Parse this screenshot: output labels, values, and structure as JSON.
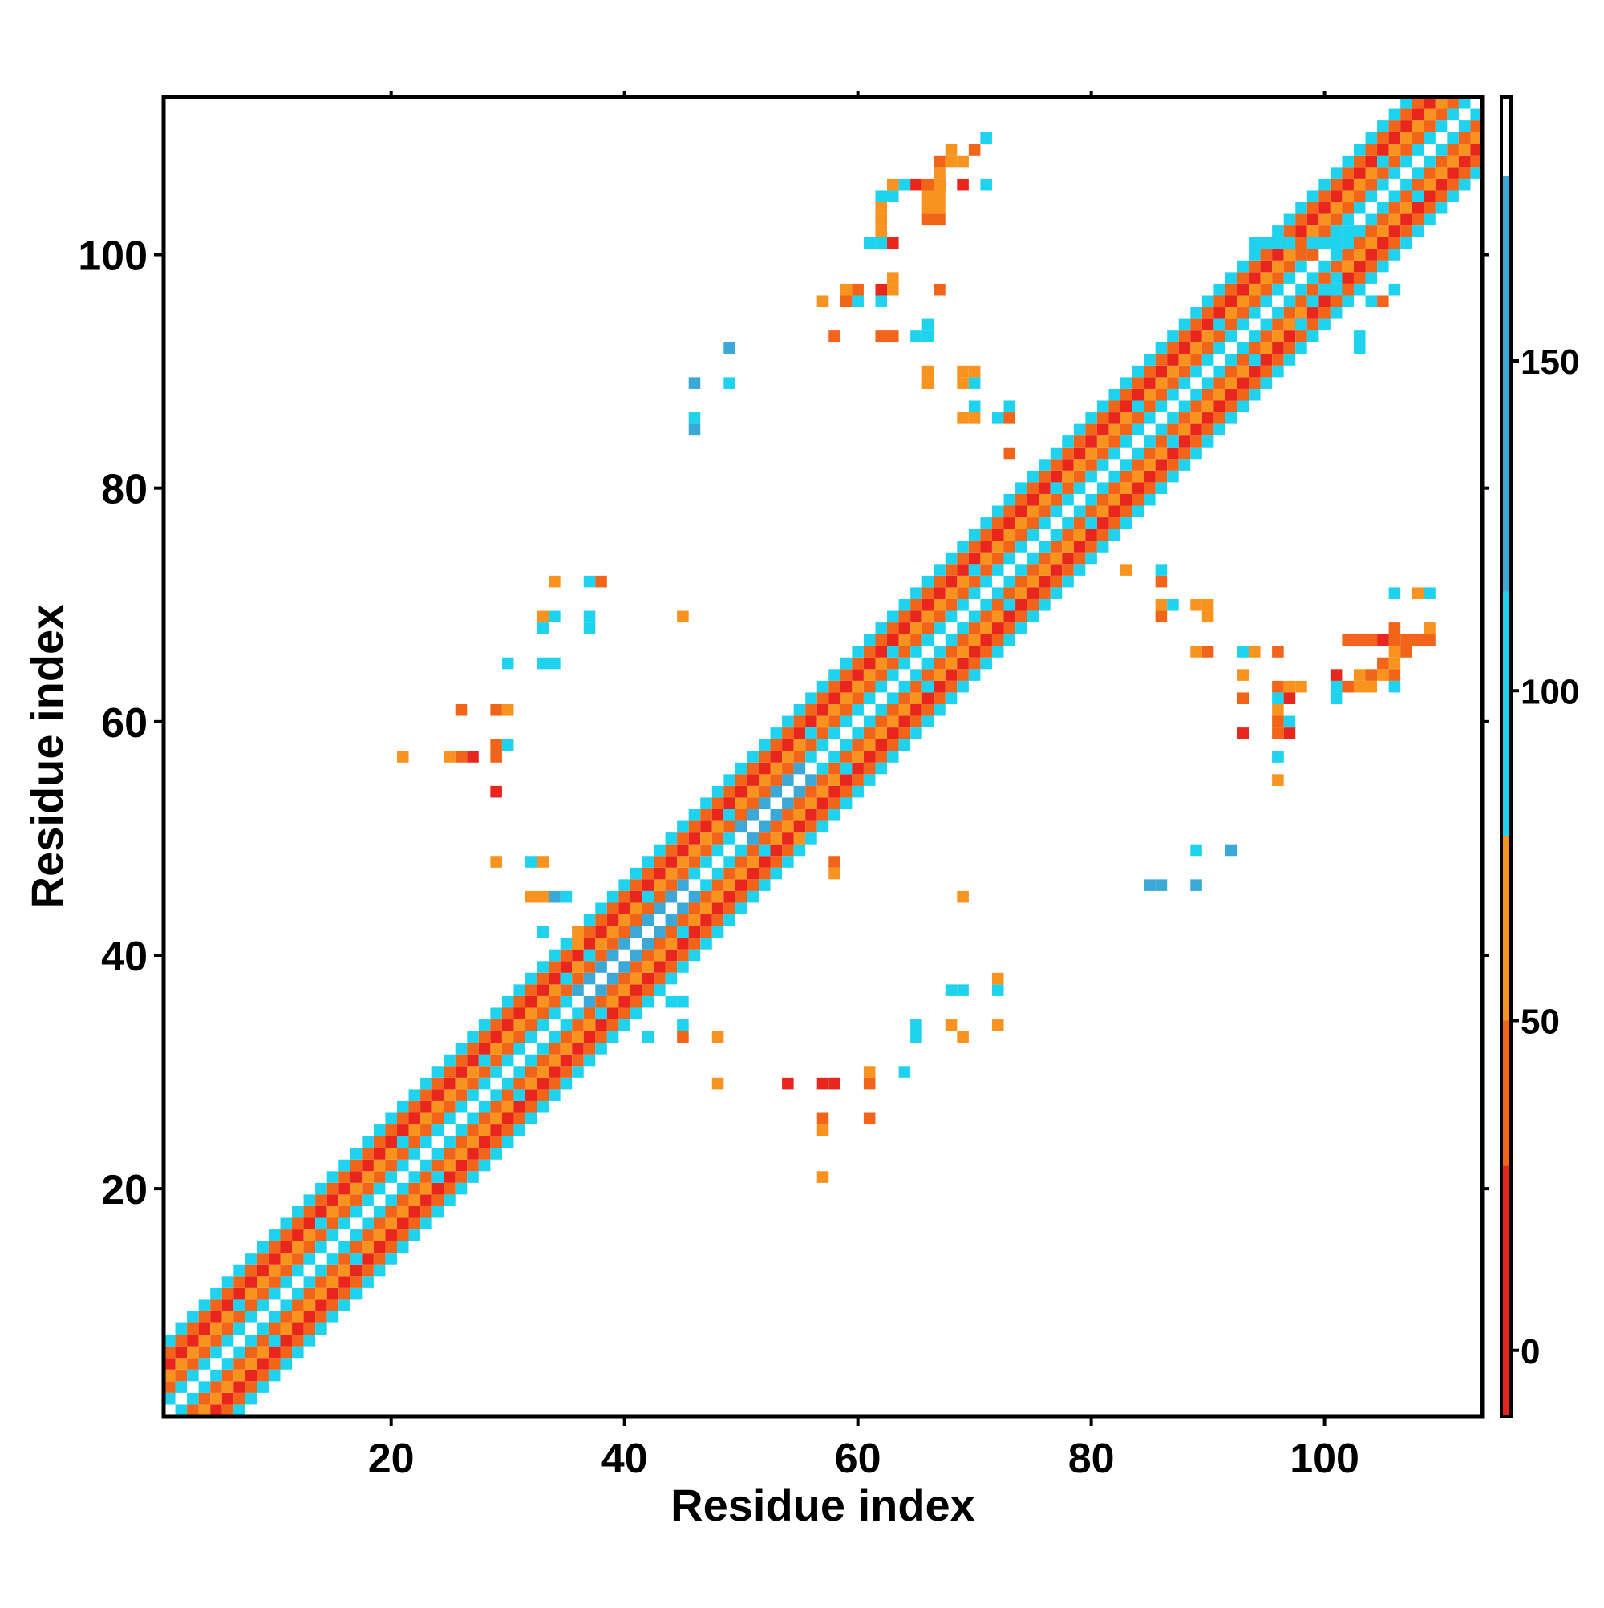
{
  "chart_data": {
    "type": "heatmap",
    "title": "",
    "xlabel": "Residue index",
    "ylabel": "Residue index",
    "xlim": [
      0.5,
      113.5
    ],
    "ylim": [
      0.5,
      113.5
    ],
    "x_ticks": [
      20,
      40,
      60,
      80,
      100
    ],
    "y_ticks": [
      20,
      40,
      60,
      80,
      100
    ],
    "grid": false,
    "colorbar": {
      "range": [
        -10,
        190
      ],
      "ticks": [
        0,
        50,
        100,
        150
      ],
      "bands": [
        {
          "from": -10,
          "to": 28,
          "color": "#E8261E"
        },
        {
          "from": 28,
          "to": 50,
          "color": "#F26419"
        },
        {
          "from": 50,
          "to": 78,
          "color": "#F7931E"
        },
        {
          "from": 78,
          "to": 115,
          "color": "#1FD3EE"
        },
        {
          "from": 115,
          "to": 178,
          "color": "#3BA9D8"
        },
        {
          "from": 178,
          "to": 190,
          "color": "#FFFFFF"
        }
      ]
    },
    "colors": {
      "red": "#E8261E",
      "orange_red": "#F26419",
      "orange": "#F7931E",
      "cyan": "#1FD3EE",
      "blue": "#3BA9D8",
      "steel_blue": "#4A7DB5"
    },
    "diagonal_band": {
      "description_values": "contacts within |i-j| <= 6 follow a repeating pattern; values per offset",
      "offset_values": {
        "1": 110,
        "2": 40,
        "3": 60,
        "4": 20,
        "5": 45,
        "6": 100
      }
    },
    "cells": [
      [
        57,
        29,
        12
      ],
      [
        57,
        26,
        35
      ],
      [
        57,
        25,
        60
      ],
      [
        57,
        21,
        60
      ],
      [
        54,
        29,
        10
      ],
      [
        58,
        29,
        95
      ],
      [
        58,
        29,
        20
      ],
      [
        61,
        30,
        55
      ],
      [
        61,
        29,
        45
      ],
      [
        61,
        26,
        40
      ],
      [
        48,
        33,
        60
      ],
      [
        48,
        29,
        65
      ],
      [
        45,
        34,
        95
      ],
      [
        45,
        33,
        45
      ],
      [
        42,
        33,
        100
      ],
      [
        45,
        36,
        95
      ],
      [
        44,
        36,
        100
      ],
      [
        43,
        37,
        110
      ],
      [
        65,
        34,
        95
      ],
      [
        65,
        33,
        95
      ],
      [
        68,
        37,
        100
      ],
      [
        69,
        37,
        95
      ],
      [
        72,
        37,
        100
      ],
      [
        72,
        38,
        60
      ],
      [
        68,
        34,
        55
      ],
      [
        69,
        33,
        60
      ],
      [
        72,
        34,
        60
      ],
      [
        64,
        30,
        100
      ],
      [
        69,
        45,
        55
      ],
      [
        58,
        48,
        45
      ],
      [
        58,
        47,
        50
      ],
      [
        55,
        50,
        65
      ],
      [
        29,
        57,
        45
      ],
      [
        29,
        54,
        20
      ],
      [
        29,
        58,
        30
      ],
      [
        30,
        58,
        100
      ],
      [
        26,
        57,
        40
      ],
      [
        25,
        57,
        60
      ],
      [
        21,
        57,
        60
      ],
      [
        27,
        57,
        10
      ],
      [
        29,
        48,
        65
      ],
      [
        32,
        48,
        100
      ],
      [
        33,
        48,
        60
      ],
      [
        32,
        45,
        60
      ],
      [
        33,
        45,
        60
      ],
      [
        34,
        45,
        130
      ],
      [
        35,
        45,
        100
      ],
      [
        33,
        42,
        100
      ],
      [
        36,
        42,
        60
      ],
      [
        36,
        41,
        60
      ],
      [
        37,
        40,
        100
      ],
      [
        26,
        61,
        45
      ],
      [
        29,
        61,
        40
      ],
      [
        30,
        61,
        55
      ],
      [
        30,
        65,
        95
      ],
      [
        33,
        65,
        95
      ],
      [
        34,
        65,
        95
      ],
      [
        33,
        68,
        100
      ],
      [
        33,
        69,
        60
      ],
      [
        34,
        69,
        100
      ],
      [
        34,
        72,
        60
      ],
      [
        37,
        69,
        100
      ],
      [
        37,
        72,
        100
      ],
      [
        38,
        72,
        45
      ],
      [
        37,
        68,
        100
      ],
      [
        45,
        69,
        60
      ],
      [
        46,
        85,
        130
      ],
      [
        46,
        86,
        100
      ],
      [
        46,
        89,
        140
      ],
      [
        49,
        89,
        100
      ],
      [
        49,
        92,
        130
      ],
      [
        57,
        96,
        60
      ],
      [
        59,
        96,
        40
      ],
      [
        60,
        96,
        95
      ],
      [
        59,
        97,
        50
      ],
      [
        60,
        97,
        45
      ],
      [
        62,
        96,
        95
      ],
      [
        62,
        97,
        10
      ],
      [
        62,
        93,
        40
      ],
      [
        58,
        93,
        45
      ],
      [
        63,
        93,
        45
      ],
      [
        65,
        93,
        95
      ],
      [
        66,
        93,
        95
      ],
      [
        66,
        94,
        95
      ],
      [
        67,
        97,
        45
      ],
      [
        63,
        98,
        60
      ],
      [
        63,
        97,
        60
      ],
      [
        66,
        90,
        60
      ],
      [
        66,
        89,
        60
      ],
      [
        69,
        89,
        60
      ],
      [
        70,
        89,
        95
      ],
      [
        70,
        90,
        60
      ],
      [
        69,
        90,
        60
      ],
      [
        69,
        86,
        60
      ],
      [
        70,
        86,
        60
      ],
      [
        70,
        87,
        95
      ],
      [
        72,
        86,
        95
      ],
      [
        73,
        87,
        95
      ],
      [
        73,
        86,
        45
      ],
      [
        73,
        83,
        45
      ],
      [
        61,
        101,
        95
      ],
      [
        62,
        101,
        95
      ],
      [
        63,
        101,
        12
      ],
      [
        62,
        102,
        60
      ],
      [
        62,
        103,
        60
      ],
      [
        62,
        104,
        60
      ],
      [
        62,
        105,
        95
      ],
      [
        63,
        105,
        95
      ],
      [
        63,
        106,
        60
      ],
      [
        64,
        106,
        95
      ],
      [
        65,
        106,
        10
      ],
      [
        66,
        106,
        45
      ],
      [
        67,
        106,
        12
      ],
      [
        66,
        105,
        60
      ],
      [
        66,
        104,
        60
      ],
      [
        66,
        103,
        45
      ],
      [
        67,
        103,
        45
      ],
      [
        67,
        104,
        60
      ],
      [
        67,
        105,
        60
      ],
      [
        67,
        106,
        60
      ],
      [
        67,
        107,
        60
      ],
      [
        67,
        108,
        45
      ],
      [
        68,
        108,
        60
      ],
      [
        68,
        109,
        60
      ],
      [
        69,
        108,
        60
      ],
      [
        69,
        106,
        10
      ],
      [
        70,
        109,
        45
      ],
      [
        71,
        106,
        95
      ],
      [
        71,
        110,
        95
      ],
      [
        83,
        73,
        60
      ],
      [
        86,
        73,
        95
      ],
      [
        86,
        72,
        45
      ],
      [
        86,
        70,
        60
      ],
      [
        87,
        70,
        95
      ],
      [
        86,
        69,
        45
      ],
      [
        89,
        70,
        60
      ],
      [
        90,
        70,
        60
      ],
      [
        90,
        69,
        60
      ],
      [
        89,
        66,
        60
      ],
      [
        90,
        66,
        45
      ],
      [
        93,
        66,
        95
      ],
      [
        93,
        64,
        60
      ],
      [
        94,
        66,
        60
      ],
      [
        96,
        66,
        45
      ],
      [
        93,
        62,
        45
      ],
      [
        93,
        59,
        12
      ],
      [
        96,
        63,
        45
      ],
      [
        97,
        63,
        60
      ],
      [
        98,
        63,
        60
      ],
      [
        96,
        62,
        95
      ],
      [
        97,
        62,
        10
      ],
      [
        96,
        61,
        60
      ],
      [
        96,
        60,
        45
      ],
      [
        96,
        59,
        45
      ],
      [
        97,
        59,
        20
      ],
      [
        97,
        60,
        95
      ],
      [
        96,
        57,
        95
      ],
      [
        96,
        55,
        60
      ],
      [
        101,
        62,
        95
      ],
      [
        101,
        63,
        95
      ],
      [
        101,
        64,
        10
      ],
      [
        102,
        63,
        45
      ],
      [
        103,
        63,
        60
      ],
      [
        103,
        64,
        60
      ],
      [
        104,
        63,
        60
      ],
      [
        104,
        64,
        45
      ],
      [
        105,
        64,
        60
      ],
      [
        105,
        65,
        45
      ],
      [
        106,
        63,
        95
      ],
      [
        106,
        64,
        45
      ],
      [
        106,
        65,
        60
      ],
      [
        106,
        66,
        60
      ],
      [
        106,
        67,
        45
      ],
      [
        102,
        67,
        45
      ],
      [
        103,
        67,
        45
      ],
      [
        104,
        67,
        45
      ],
      [
        105,
        67,
        10
      ],
      [
        106,
        68,
        45
      ],
      [
        107,
        66,
        45
      ],
      [
        107,
        67,
        45
      ],
      [
        108,
        67,
        45
      ],
      [
        109,
        67,
        45
      ],
      [
        109,
        68,
        60
      ],
      [
        106,
        71,
        95
      ],
      [
        108,
        71,
        60
      ],
      [
        109,
        71,
        95
      ],
      [
        85,
        46,
        130
      ],
      [
        86,
        46,
        130
      ],
      [
        89,
        46,
        130
      ],
      [
        89,
        49,
        100
      ],
      [
        92,
        49,
        130
      ],
      [
        96,
        57,
        95
      ],
      [
        98,
        94,
        100
      ],
      [
        99,
        93,
        95
      ],
      [
        99,
        96,
        95
      ],
      [
        100,
        97,
        100
      ],
      [
        101,
        97,
        95
      ],
      [
        103,
        93,
        100
      ],
      [
        103,
        92,
        95
      ],
      [
        104,
        96,
        95
      ],
      [
        105,
        96,
        45
      ],
      [
        106,
        97,
        95
      ],
      [
        94,
        101,
        95
      ],
      [
        95,
        101,
        95
      ],
      [
        96,
        101,
        95
      ],
      [
        97,
        101,
        95
      ],
      [
        98,
        101,
        45
      ],
      [
        99,
        100,
        45
      ],
      [
        99,
        101,
        95
      ],
      [
        100,
        101,
        95
      ],
      [
        101,
        101,
        95
      ],
      [
        102,
        102,
        95
      ]
    ]
  }
}
